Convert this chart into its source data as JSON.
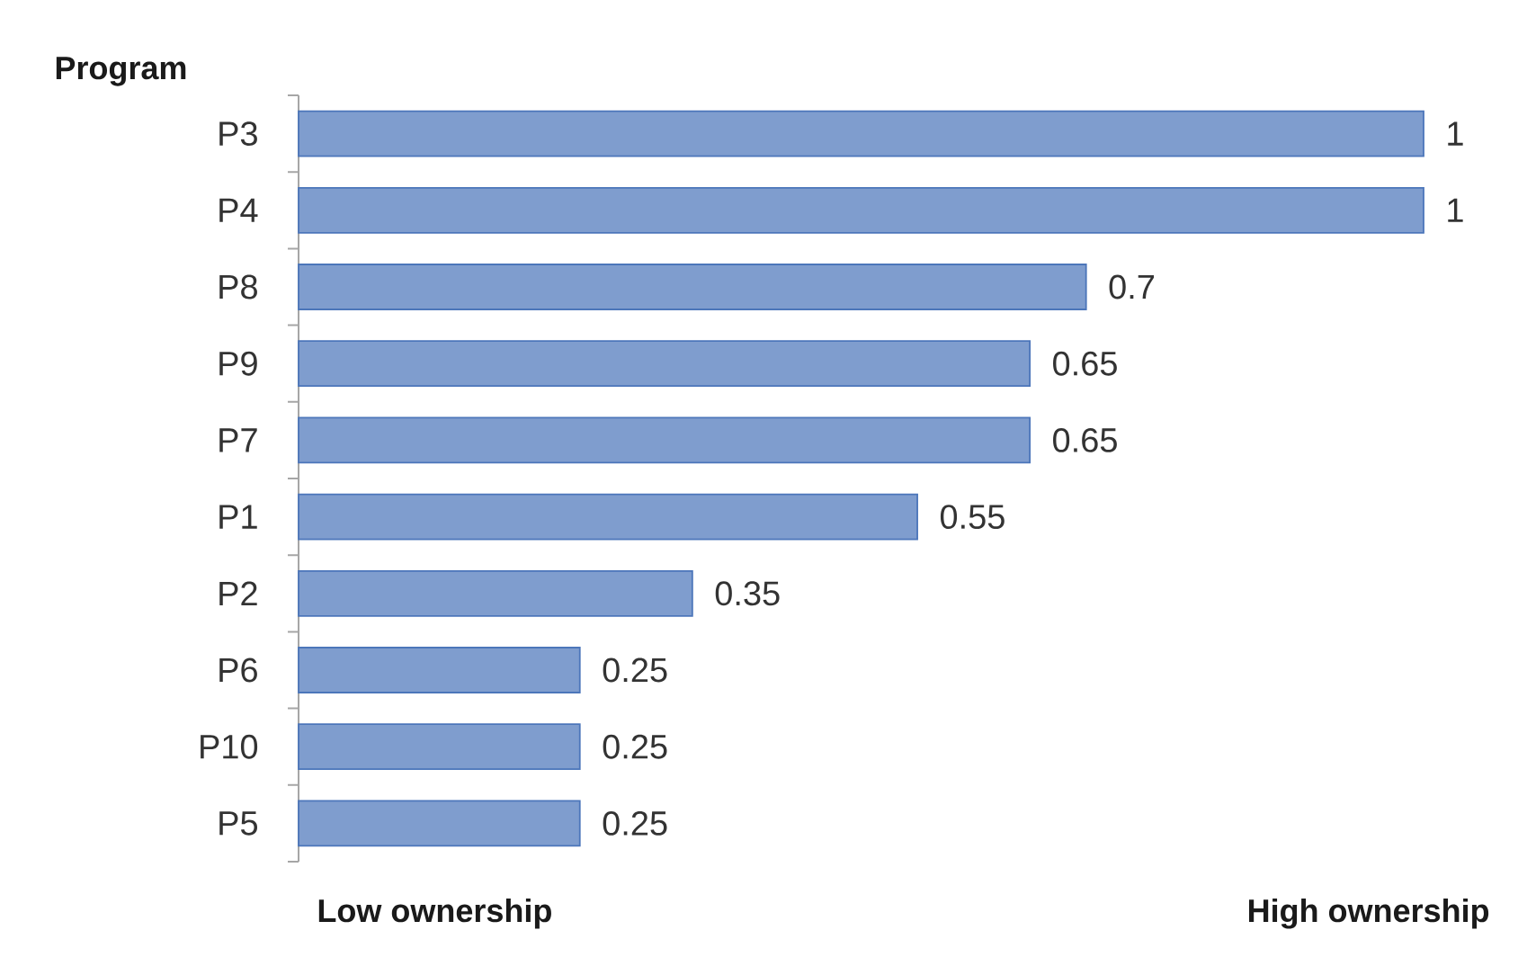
{
  "chart_data": {
    "type": "bar",
    "orientation": "horizontal",
    "ylabel": "Program",
    "categories": [
      "P3",
      "P4",
      "P8",
      "P9",
      "P7",
      "P1",
      "P2",
      "P6",
      "P10",
      "P5"
    ],
    "values": [
      1,
      1,
      0.7,
      0.65,
      0.65,
      0.55,
      0.35,
      0.25,
      0.25,
      0.25
    ],
    "color": "#7f9dce",
    "data_labels": true,
    "annotations": [
      "Low ownership",
      "High ownership"
    ]
  }
}
